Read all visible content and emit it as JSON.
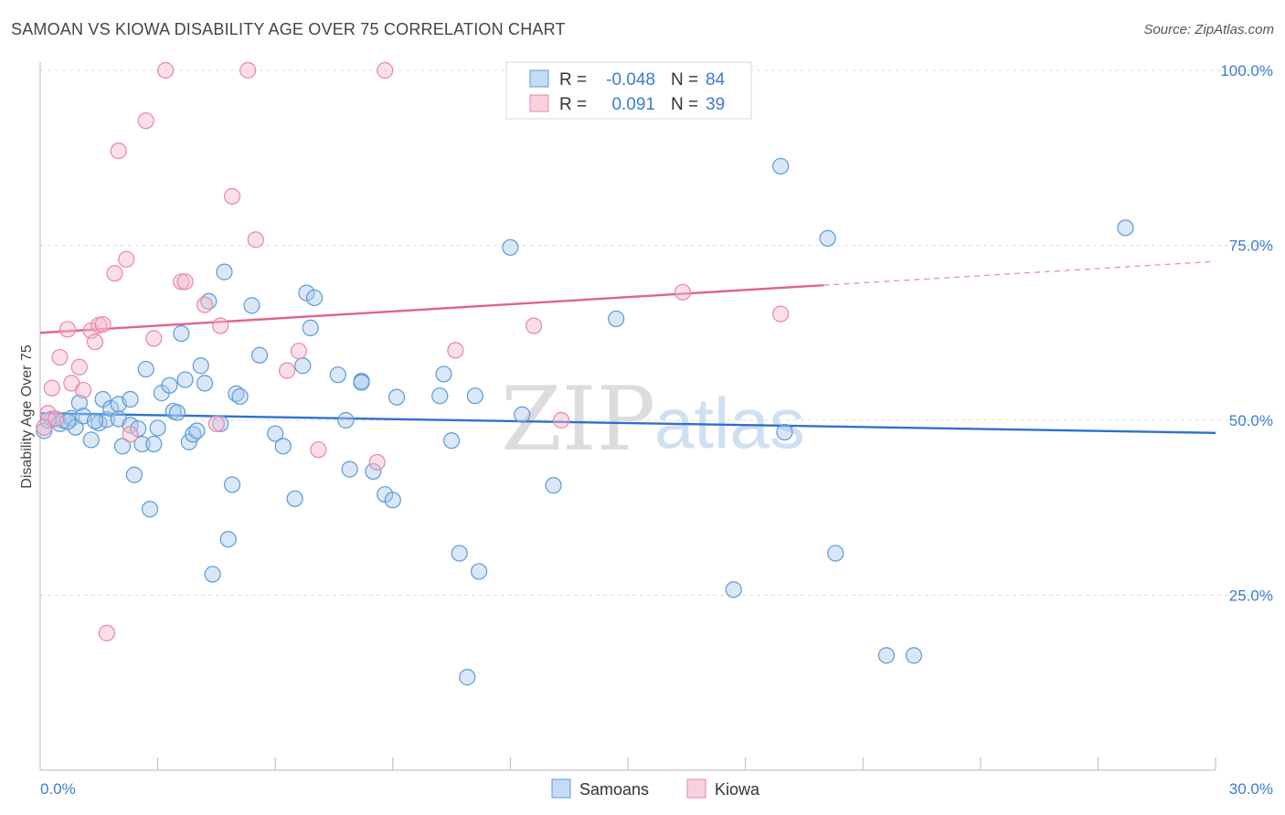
{
  "header": {
    "title": "SAMOAN VS KIOWA DISABILITY AGE OVER 75 CORRELATION CHART",
    "source": "Source: ZipAtlas.com"
  },
  "colors": {
    "blue": "#5b9bd5",
    "blue_fill": "#aac9ee",
    "blue_line": "#2f6fd1",
    "pink": "#e986a6",
    "pink_fill": "#f5b8cc",
    "pink_line": "#e0638c",
    "tick_text": "#3d7ad6"
  },
  "legend": {
    "rows": [
      {
        "r_label": "R =",
        "r_value": "-0.048",
        "n_label": "N =",
        "n_value": "84"
      },
      {
        "r_label": "R =",
        "r_value": "0.091",
        "n_label": "N =",
        "n_value": "39"
      }
    ]
  },
  "bottom_legend": {
    "items": [
      "Samoans",
      "Kiowa"
    ]
  },
  "watermark": {
    "zip": "ZIP",
    "atlas": "atlas"
  },
  "chart_data": {
    "type": "scatter",
    "title": "SAMOAN VS KIOWA DISABILITY AGE OVER 75 CORRELATION CHART",
    "xlabel": "",
    "ylabel": "Disability Age Over 75",
    "xlim": [
      0,
      30
    ],
    "ylim": [
      0,
      105
    ],
    "x_tick_labels": [
      "0.0%",
      "30.0%"
    ],
    "y_ticks": [
      25,
      50,
      75,
      100
    ],
    "y_tick_labels": [
      "25.0%",
      "50.0%",
      "75.0%",
      "100.0%"
    ],
    "grid": true,
    "series": [
      {
        "name": "Samoans",
        "color": "blue",
        "trend": {
          "x": [
            0,
            30
          ],
          "y": [
            51.0,
            48.2
          ],
          "dashed_from": null
        },
        "points": [
          [
            0.1,
            48.5
          ],
          [
            0.3,
            50.2
          ],
          [
            0.5,
            49.5
          ],
          [
            0.6,
            50.0
          ],
          [
            0.8,
            50.3
          ],
          [
            0.9,
            49.0
          ],
          [
            1.0,
            52.5
          ],
          [
            1.1,
            50.6
          ],
          [
            1.3,
            47.2
          ],
          [
            1.5,
            49.6
          ],
          [
            1.6,
            53.0
          ],
          [
            1.7,
            50.1
          ],
          [
            1.8,
            51.7
          ],
          [
            2.0,
            52.3
          ],
          [
            2.0,
            50.2
          ],
          [
            2.1,
            46.3
          ],
          [
            2.3,
            53.0
          ],
          [
            2.3,
            49.3
          ],
          [
            2.4,
            42.2
          ],
          [
            2.5,
            48.8
          ],
          [
            2.6,
            46.6
          ],
          [
            2.7,
            57.3
          ],
          [
            2.8,
            37.3
          ],
          [
            2.9,
            46.6
          ],
          [
            3.0,
            48.9
          ],
          [
            3.1,
            53.9
          ],
          [
            3.3,
            55.0
          ],
          [
            3.4,
            51.3
          ],
          [
            3.5,
            51.1
          ],
          [
            3.6,
            62.4
          ],
          [
            3.7,
            55.8
          ],
          [
            3.8,
            46.9
          ],
          [
            3.9,
            48.0
          ],
          [
            4.0,
            48.5
          ],
          [
            4.1,
            57.8
          ],
          [
            4.2,
            55.3
          ],
          [
            4.3,
            67.0
          ],
          [
            4.4,
            28.0
          ],
          [
            4.6,
            49.5
          ],
          [
            4.7,
            71.2
          ],
          [
            4.8,
            33.0
          ],
          [
            4.9,
            40.8
          ],
          [
            5.0,
            53.8
          ],
          [
            5.1,
            53.4
          ],
          [
            5.4,
            66.4
          ],
          [
            5.6,
            59.3
          ],
          [
            6.0,
            48.1
          ],
          [
            6.2,
            46.3
          ],
          [
            6.5,
            38.8
          ],
          [
            6.7,
            57.8
          ],
          [
            6.8,
            68.2
          ],
          [
            6.9,
            63.2
          ],
          [
            7.0,
            67.5
          ],
          [
            7.6,
            56.5
          ],
          [
            7.8,
            50.0
          ],
          [
            7.9,
            43.0
          ],
          [
            8.2,
            55.6
          ],
          [
            8.2,
            55.4
          ],
          [
            8.5,
            42.7
          ],
          [
            8.8,
            39.4
          ],
          [
            9.0,
            38.6
          ],
          [
            9.1,
            53.3
          ],
          [
            10.2,
            53.5
          ],
          [
            10.3,
            56.6
          ],
          [
            10.5,
            47.1
          ],
          [
            10.7,
            31.0
          ],
          [
            10.9,
            13.3
          ],
          [
            11.1,
            53.5
          ],
          [
            11.2,
            28.4
          ],
          [
            12.0,
            74.7
          ],
          [
            12.3,
            50.8
          ],
          [
            13.1,
            40.7
          ],
          [
            14.7,
            64.5
          ],
          [
            17.7,
            25.8
          ],
          [
            18.9,
            86.3
          ],
          [
            19.0,
            48.3
          ],
          [
            20.1,
            76.0
          ],
          [
            20.3,
            31.0
          ],
          [
            21.6,
            16.4
          ],
          [
            22.3,
            16.4
          ],
          [
            27.7,
            77.5
          ],
          [
            0.2,
            50.0
          ],
          [
            0.7,
            49.8
          ],
          [
            1.4,
            49.9
          ]
        ]
      },
      {
        "name": "Kiowa",
        "color": "pink",
        "trend": {
          "x": [
            0,
            30
          ],
          "y": [
            62.5,
            72.7
          ],
          "dashed_from": 20.0
        },
        "points": [
          [
            0.1,
            49.0
          ],
          [
            0.2,
            51.0
          ],
          [
            0.3,
            54.6
          ],
          [
            0.5,
            59.0
          ],
          [
            0.7,
            63.0
          ],
          [
            0.8,
            55.3
          ],
          [
            1.0,
            57.6
          ],
          [
            1.1,
            54.3
          ],
          [
            1.3,
            62.8
          ],
          [
            1.4,
            61.2
          ],
          [
            1.5,
            63.6
          ],
          [
            1.6,
            63.7
          ],
          [
            1.7,
            19.6
          ],
          [
            1.9,
            71.0
          ],
          [
            2.0,
            88.5
          ],
          [
            2.2,
            73.0
          ],
          [
            2.3,
            48.0
          ],
          [
            2.7,
            92.8
          ],
          [
            2.9,
            61.7
          ],
          [
            3.2,
            100.0
          ],
          [
            3.6,
            69.8
          ],
          [
            3.7,
            69.8
          ],
          [
            4.2,
            66.5
          ],
          [
            4.5,
            49.5
          ],
          [
            4.6,
            63.5
          ],
          [
            4.9,
            82.0
          ],
          [
            5.3,
            100.0
          ],
          [
            5.5,
            75.8
          ],
          [
            6.3,
            57.1
          ],
          [
            6.6,
            59.9
          ],
          [
            7.1,
            45.8
          ],
          [
            8.6,
            44.0
          ],
          [
            8.8,
            100.0
          ],
          [
            10.6,
            60.0
          ],
          [
            12.6,
            63.5
          ],
          [
            13.3,
            50.0
          ],
          [
            16.4,
            68.3
          ],
          [
            18.9,
            65.2
          ],
          [
            0.4,
            50.2
          ]
        ]
      }
    ]
  }
}
